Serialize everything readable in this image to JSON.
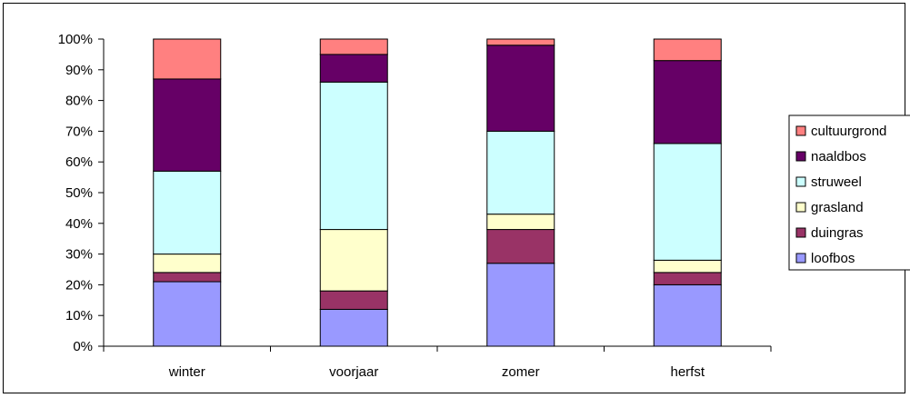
{
  "chart_data": {
    "type": "bar",
    "stacked": true,
    "percent": true,
    "categories": [
      "winter",
      "voorjaar",
      "zomer",
      "herfst"
    ],
    "series": [
      {
        "name": "loofbos",
        "color": "#9999ff",
        "values": [
          21,
          12,
          27,
          20
        ]
      },
      {
        "name": "duingras",
        "color": "#993366",
        "values": [
          3,
          6,
          11,
          4
        ]
      },
      {
        "name": "grasland",
        "color": "#ffffcc",
        "values": [
          6,
          20,
          5,
          4
        ]
      },
      {
        "name": "struweel",
        "color": "#ccffff",
        "values": [
          27,
          48,
          27,
          38
        ]
      },
      {
        "name": "naaldbos",
        "color": "#660066",
        "values": [
          30,
          9,
          28,
          27
        ]
      },
      {
        "name": "cultuurgrond",
        "color": "#ff8080",
        "values": [
          13,
          5,
          2,
          7
        ]
      }
    ],
    "ylim": [
      0,
      100
    ],
    "yticks": [
      "0%",
      "10%",
      "20%",
      "30%",
      "40%",
      "50%",
      "60%",
      "70%",
      "80%",
      "90%",
      "100%"
    ],
    "grid": false,
    "legend": "right",
    "legend_order": [
      "cultuurgrond",
      "naaldbos",
      "struweel",
      "grasland",
      "duingras",
      "loofbos"
    ]
  }
}
